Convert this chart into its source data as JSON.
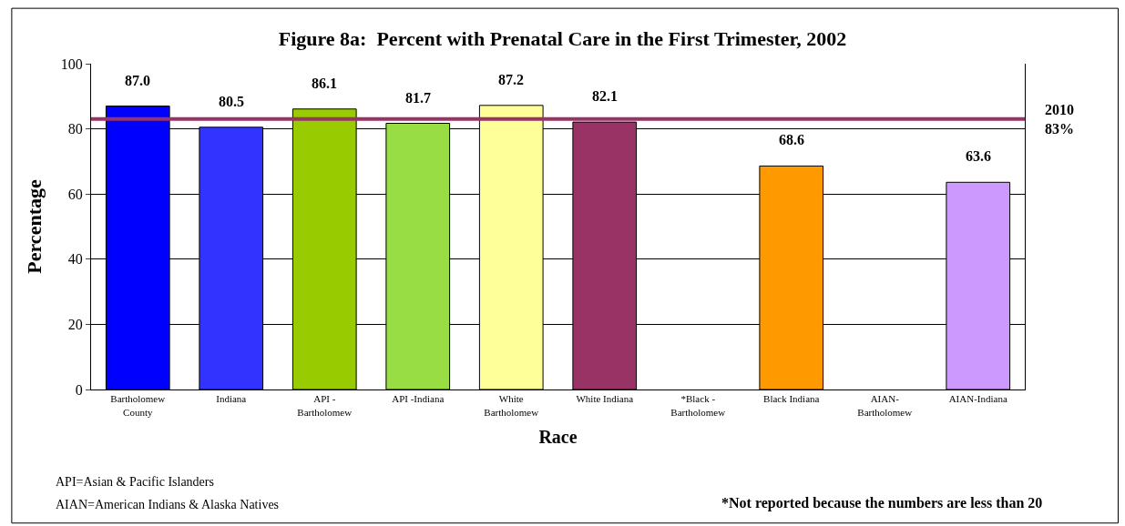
{
  "chart_data": {
    "type": "bar",
    "title": "Figure 8a:  Percent with Prenatal Care in the First Trimester, 2002",
    "xlabel": "Race",
    "ylabel": "Percentage",
    "categories": [
      "Bartholomew\nCounty",
      "Indiana",
      "API -\nBartholomew",
      "API -Indiana",
      "White\nBartholomew",
      "White Indiana",
      "*Black -\nBartholomew",
      "Black Indiana",
      "AIAN-\nBartholomew",
      "AIAN-Indiana"
    ],
    "values": [
      87.0,
      80.5,
      86.1,
      81.7,
      87.2,
      82.1,
      null,
      68.6,
      null,
      63.6
    ],
    "value_labels": [
      "87.0",
      "80.5",
      "86.1",
      "81.7",
      "87.2",
      "82.1",
      null,
      "68.6",
      null,
      "63.6"
    ],
    "colors": [
      "#0000ff",
      "#3333ff",
      "#99cc00",
      "#99dd44",
      "#ffff99",
      "#993366",
      "#cccccc",
      "#ff9900",
      "#cccccc",
      "#cc99ff"
    ],
    "ylim": [
      0,
      100
    ],
    "yticks": [
      0,
      20,
      40,
      60,
      80,
      100
    ],
    "grid": "y",
    "ref_lines": [
      {
        "axis": "y",
        "value": 83,
        "label": "2010\n83%",
        "color": "#993366"
      }
    ],
    "annotations": [
      "API=Asian & Pacific Islanders",
      "AIAN=American Indians & Alaska Natives",
      "*Not reported because the numbers are less than 20"
    ]
  }
}
